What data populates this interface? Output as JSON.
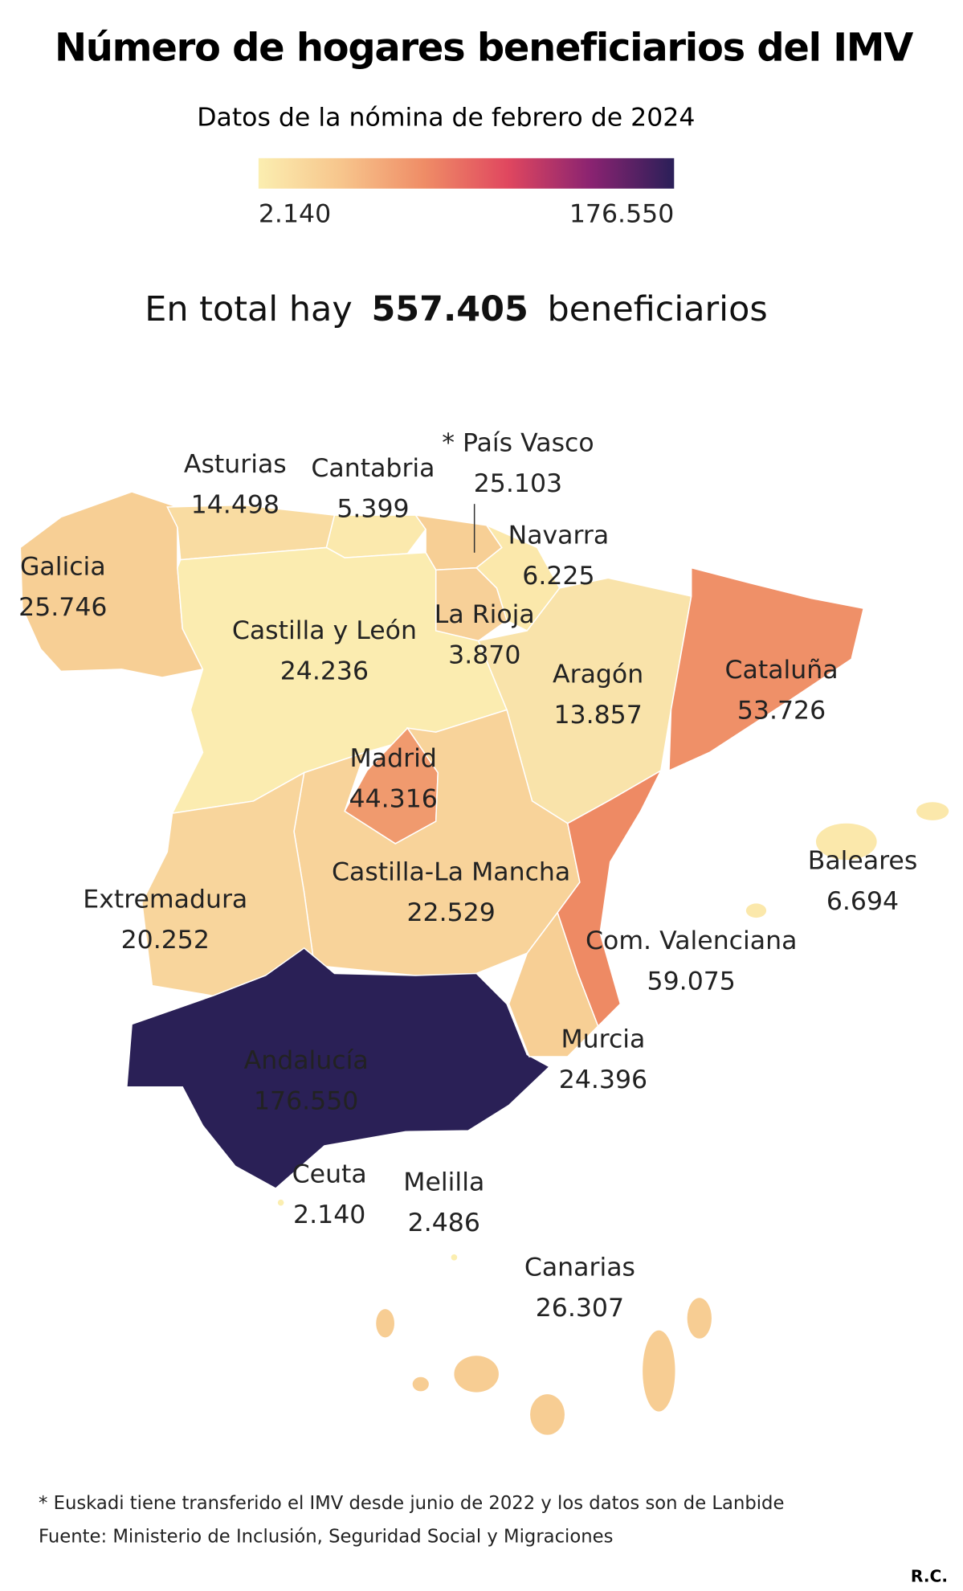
{
  "header": {
    "title": "Número de hogares beneficiarios del IMV",
    "subtitle": "Datos de la nómina de febrero de 2024"
  },
  "legend": {
    "min_label": "2.140",
    "max_label": "176.550",
    "colors": [
      "#fbeeb0",
      "#f7c58c",
      "#ef8c66",
      "#e0475f",
      "#8a2371",
      "#2a1f58"
    ]
  },
  "total": {
    "prefix": "En total hay",
    "value": "557.405",
    "suffix": "beneficiarios"
  },
  "regions": [
    {
      "name": "Galicia",
      "value": "25.746",
      "color": "#f7cf95"
    },
    {
      "name": "Asturias",
      "value": "14.498",
      "color": "#f9dca2"
    },
    {
      "name": "Cantabria",
      "value": "5.399",
      "color": "#fbe9ad"
    },
    {
      "name": "* País Vasco",
      "value": "25.103",
      "color": "#f7cf95"
    },
    {
      "name": "Navarra",
      "value": "6.225",
      "color": "#fbe8ab"
    },
    {
      "name": "Castilla y León",
      "value": "24.236",
      "color": "#f7d098"
    },
    {
      "name": "La Rioja",
      "value": "3.870",
      "color": "#fbecb0"
    },
    {
      "name": "Aragón",
      "value": "13.857",
      "color": "#f9e3aa"
    },
    {
      "name": "Cataluña",
      "value": "53.726",
      "color": "#ef9068"
    },
    {
      "name": "Madrid",
      "value": "44.316",
      "color": "#f09a6e"
    },
    {
      "name": "Castilla-La Mancha",
      "value": "22.529",
      "color": "#f8d39a"
    },
    {
      "name": "Extremadura",
      "value": "20.252",
      "color": "#f8d59c"
    },
    {
      "name": "Com. Valenciana",
      "value": "59.075",
      "color": "#ee8a64"
    },
    {
      "name": "Baleares",
      "value": "6.694",
      "color": "#fbe8ab"
    },
    {
      "name": "Andalucía",
      "value": "176.550",
      "color": "#2a2056"
    },
    {
      "name": "Murcia",
      "value": "24.396",
      "color": "#f7cf95"
    },
    {
      "name": "Ceuta",
      "value": "2.140",
      "color": "#fbeeb0"
    },
    {
      "name": "Melilla",
      "value": "2.486",
      "color": "#fbeeb0"
    },
    {
      "name": "Canarias",
      "value": "26.307",
      "color": "#f7cd93"
    }
  ],
  "footer": {
    "note": "* Euskadi tiene transferido el IMV desde junio de 2022 y los datos son de Lanbide",
    "source": "Fuente: Ministerio de Inclusión, Seguridad Social y Migraciones",
    "credit": "R.C."
  }
}
